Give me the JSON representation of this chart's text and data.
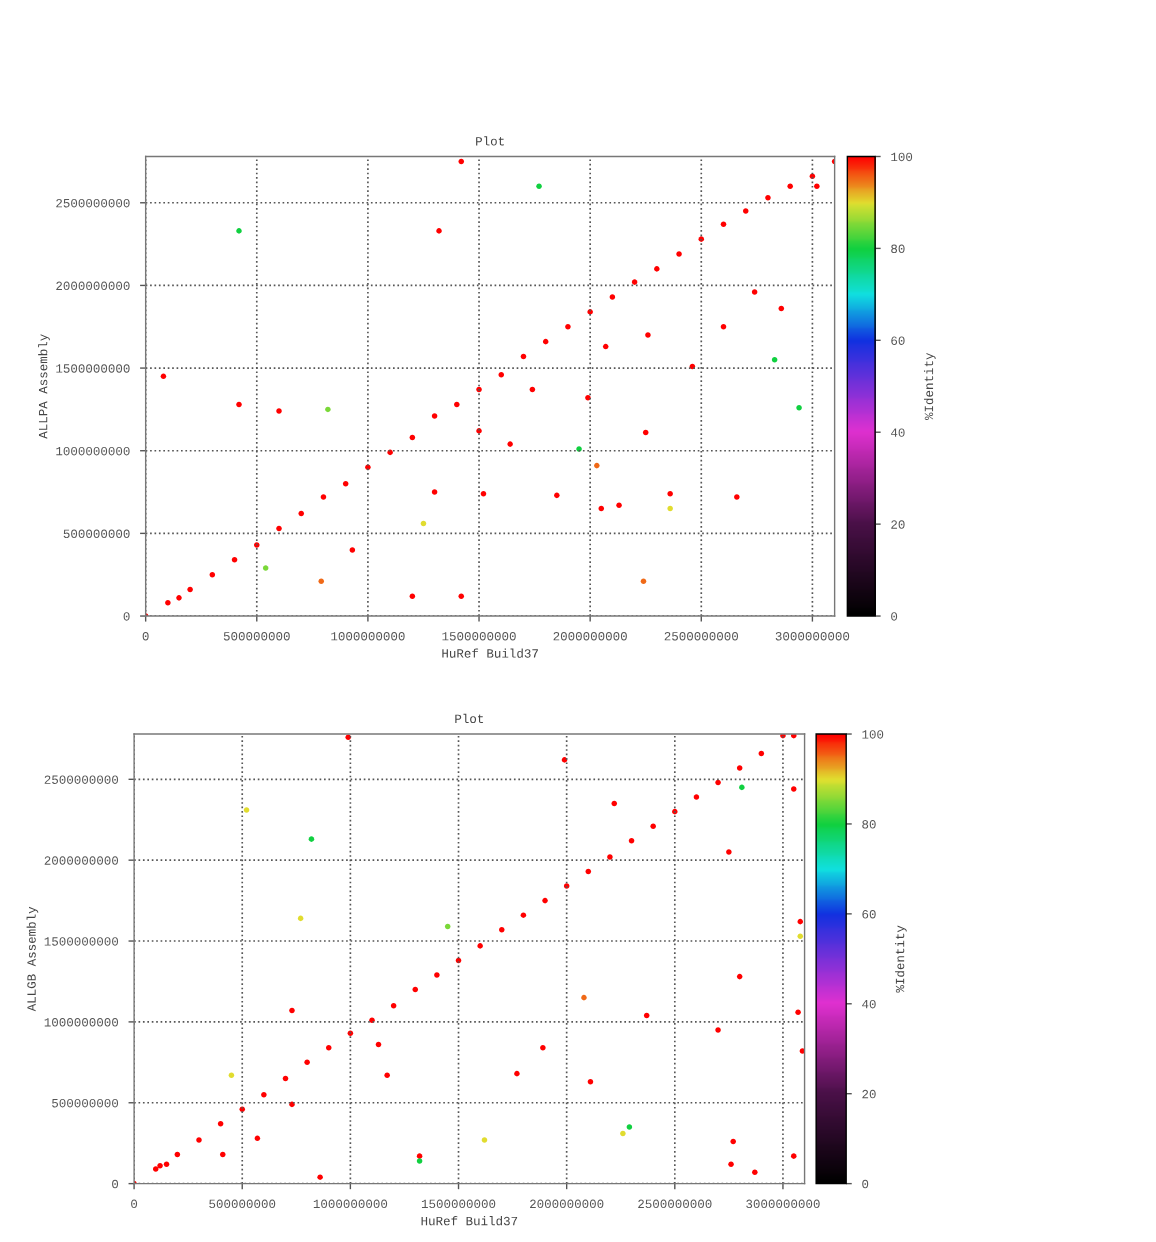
{
  "chart_data": [
    {
      "type": "scatter",
      "title": "Plot",
      "xlabel": "HuRef Build37",
      "ylabel": "ALLPA Assembly",
      "clabel": "%Identity",
      "grid": true,
      "x": [
        0,
        100000000.0,
        150000000.0,
        200000000.0,
        300000000.0,
        400000000.0,
        500000000.0,
        600000000.0,
        700000000.0,
        800000000.0,
        900000000.0,
        1000000000.0,
        1100000000.0,
        1200000000.0,
        1300000000.0,
        1400000000.0,
        1500000000.0,
        1600000000.0,
        1700000000.0,
        1800000000.0,
        1900000000.0,
        2000000000.0,
        2100000000.0,
        2200000000.0,
        2300000000.0,
        2400000000.0,
        2500000000.0,
        2600000000.0,
        2700000000.0,
        2800000000.0,
        2900000000.0,
        3000000000.0,
        3100000000.0,
        420000000.0,
        420000000.0,
        600000000.0,
        80000000.0,
        820000000.0,
        540000000.0,
        790000000.0,
        930000000.0,
        1200000000.0,
        1420000000.0,
        1250000000.0,
        1300000000.0,
        1320000000.0,
        1420000000.0,
        1770000000.0,
        1500000000.0,
        1520000000.0,
        1640000000.0,
        1740000000.0,
        1850000000.0,
        1950000000.0,
        1990000000.0,
        2030000000.0,
        2050000000.0,
        2070000000.0,
        2130000000.0,
        2240000000.0,
        2250000000.0,
        2260000000.0,
        2360000000.0,
        2360000000.0,
        2460000000.0,
        2600000000.0,
        2660000000.0,
        2740000000.0,
        2830000000.0,
        2860000000.0,
        2940000000.0,
        3020000000.0
      ],
      "values": [
        0,
        80000000.0,
        110000000.0,
        160000000.0,
        250000000.0,
        340000000.0,
        430000000.0,
        530000000.0,
        620000000.0,
        720000000.0,
        800000000.0,
        900000000.0,
        990000000.0,
        1080000000.0,
        1210000000.0,
        1280000000.0,
        1370000000.0,
        1460000000.0,
        1570000000.0,
        1660000000.0,
        1750000000.0,
        1840000000.0,
        1930000000.0,
        2020000000.0,
        2100000000.0,
        2190000000.0,
        2280000000.0,
        2370000000.0,
        2450000000.0,
        2530000000.0,
        2600000000.0,
        2660000000.0,
        2750000000.0,
        2330000000.0,
        1280000000.0,
        1240000000.0,
        1450000000.0,
        1250000000.0,
        290000000.0,
        210000000.0,
        400000000.0,
        120000000.0,
        120000000.0,
        560000000.0,
        750000000.0,
        2330000000.0,
        2750000000.0,
        2600000000.0,
        1120000000.0,
        740000000.0,
        1040000000.0,
        1370000000.0,
        730000000.0,
        1010000000.0,
        1320000000.0,
        910000000.0,
        650000000.0,
        1630000000.0,
        670000000.0,
        210000000.0,
        1110000000.0,
        1700000000.0,
        740000000.0,
        650000000.0,
        1510000000.0,
        1750000000.0,
        720000000.0,
        1960000000.0,
        1550000000.0,
        1860000000.0,
        1260000000.0,
        2600000000.0
      ],
      "cvalues": [
        100,
        100,
        100,
        100,
        100,
        100,
        100,
        100,
        100,
        100,
        100,
        100,
        100,
        100,
        100,
        100,
        100,
        100,
        100,
        100,
        100,
        100,
        100,
        100,
        100,
        100,
        100,
        100,
        100,
        100,
        100,
        100,
        100,
        80,
        100,
        100,
        100,
        85,
        85,
        95,
        100,
        100,
        100,
        90,
        100,
        100,
        100,
        80,
        100,
        100,
        100,
        100,
        100,
        80,
        100,
        95,
        100,
        100,
        100,
        95,
        100,
        100,
        100,
        90,
        100,
        100,
        100,
        100,
        80,
        100,
        80,
        100
      ],
      "xlim": [
        0,
        3100000000.0
      ],
      "ylim": [
        0,
        2780000000.0
      ],
      "xticks": [
        0,
        500000000,
        1000000000,
        1500000000,
        2000000000,
        2500000000,
        3000000000
      ],
      "yticks": [
        0,
        500000000,
        1000000000,
        1500000000,
        2000000000,
        2500000000
      ],
      "clim": [
        0,
        100
      ],
      "cticks": [
        0,
        20,
        40,
        60,
        80,
        100
      ]
    },
    {
      "type": "scatter",
      "title": "Plot",
      "xlabel": "HuRef Build37",
      "ylabel": "ALLGB Assembly",
      "clabel": "%Identity",
      "grid": true,
      "x": [
        0,
        100000000.0,
        120000000.0,
        150000000.0,
        200000000.0,
        300000000.0,
        400000000.0,
        500000000.0,
        600000000.0,
        700000000.0,
        800000000.0,
        900000000.0,
        1000000000.0,
        1100000000.0,
        1200000000.0,
        1300000000.0,
        1400000000.0,
        1500000000.0,
        1600000000.0,
        1700000000.0,
        1800000000.0,
        1900000000.0,
        2000000000.0,
        2100000000.0,
        2200000000.0,
        2300000000.0,
        2400000000.0,
        2500000000.0,
        2600000000.0,
        2700000000.0,
        2800000000.0,
        2900000000.0,
        3000000000.0,
        520000000.0,
        820000000.0,
        770000000.0,
        730000000.0,
        450000000.0,
        410000000.0,
        570000000.0,
        730000000.0,
        860000000.0,
        990000000.0,
        1130000000.0,
        1170000000.0,
        1320000000.0,
        1320000000.0,
        1450000000.0,
        1620000000.0,
        1770000000.0,
        1890000000.0,
        1990000000.0,
        2080000000.0,
        2110000000.0,
        2220000000.0,
        2260000000.0,
        2290000000.0,
        2370000000.0,
        2700000000.0,
        2750000000.0,
        2770000000.0,
        2760000000.0,
        2800000000.0,
        2810000000.0,
        2870000000.0,
        3050000000.0,
        3050000000.0,
        3050000000.0,
        3080000000.0,
        3090000000.0,
        3070000000.0,
        3080000000.0
      ],
      "values": [
        0,
        90000000.0,
        110000000.0,
        120000000.0,
        180000000.0,
        270000000.0,
        370000000.0,
        460000000.0,
        550000000.0,
        650000000.0,
        750000000.0,
        840000000.0,
        930000000.0,
        1010000000.0,
        1100000000.0,
        1200000000.0,
        1290000000.0,
        1380000000.0,
        1470000000.0,
        1570000000.0,
        1660000000.0,
        1750000000.0,
        1840000000.0,
        1930000000.0,
        2020000000.0,
        2120000000.0,
        2210000000.0,
        2300000000.0,
        2390000000.0,
        2480000000.0,
        2570000000.0,
        2660000000.0,
        2770000000.0,
        2310000000.0,
        2130000000.0,
        1640000000.0,
        1070000000.0,
        670000000.0,
        180000000.0,
        280000000.0,
        490000000.0,
        40000000.0,
        2760000000.0,
        860000000.0,
        670000000.0,
        170000000.0,
        140000000.0,
        1590000000.0,
        270000000.0,
        680000000.0,
        840000000.0,
        2620000000.0,
        1150000000.0,
        630000000.0,
        2350000000.0,
        310000000.0,
        350000000.0,
        1040000000.0,
        950000000.0,
        2050000000.0,
        260000000.0,
        120000000.0,
        1280000000.0,
        2450000000.0,
        70000000.0,
        2770000000.0,
        2440000000.0,
        170000000.0,
        1620000000.0,
        820000000.0,
        1060000000.0,
        1530000000.0
      ],
      "cvalues": [
        100,
        100,
        100,
        100,
        100,
        100,
        100,
        100,
        100,
        100,
        100,
        100,
        100,
        100,
        100,
        100,
        100,
        100,
        100,
        100,
        100,
        100,
        100,
        100,
        100,
        100,
        100,
        100,
        100,
        100,
        100,
        100,
        100,
        90,
        80,
        90,
        100,
        90,
        100,
        100,
        100,
        100,
        100,
        100,
        100,
        100,
        80,
        85,
        90,
        100,
        100,
        100,
        95,
        100,
        100,
        90,
        80,
        100,
        100,
        100,
        100,
        100,
        100,
        80,
        100,
        100,
        100,
        100,
        100,
        100,
        100,
        90
      ],
      "xlim": [
        0,
        3100000000.0
      ],
      "ylim": [
        0,
        2780000000.0
      ],
      "xticks": [
        0,
        500000000,
        1000000000,
        1500000000,
        2000000000,
        2500000000,
        3000000000
      ],
      "yticks": [
        0,
        500000000,
        1000000000,
        1500000000,
        2000000000,
        2500000000
      ],
      "clim": [
        0,
        100
      ],
      "cticks": [
        0,
        20,
        40,
        60,
        80,
        100
      ]
    }
  ]
}
